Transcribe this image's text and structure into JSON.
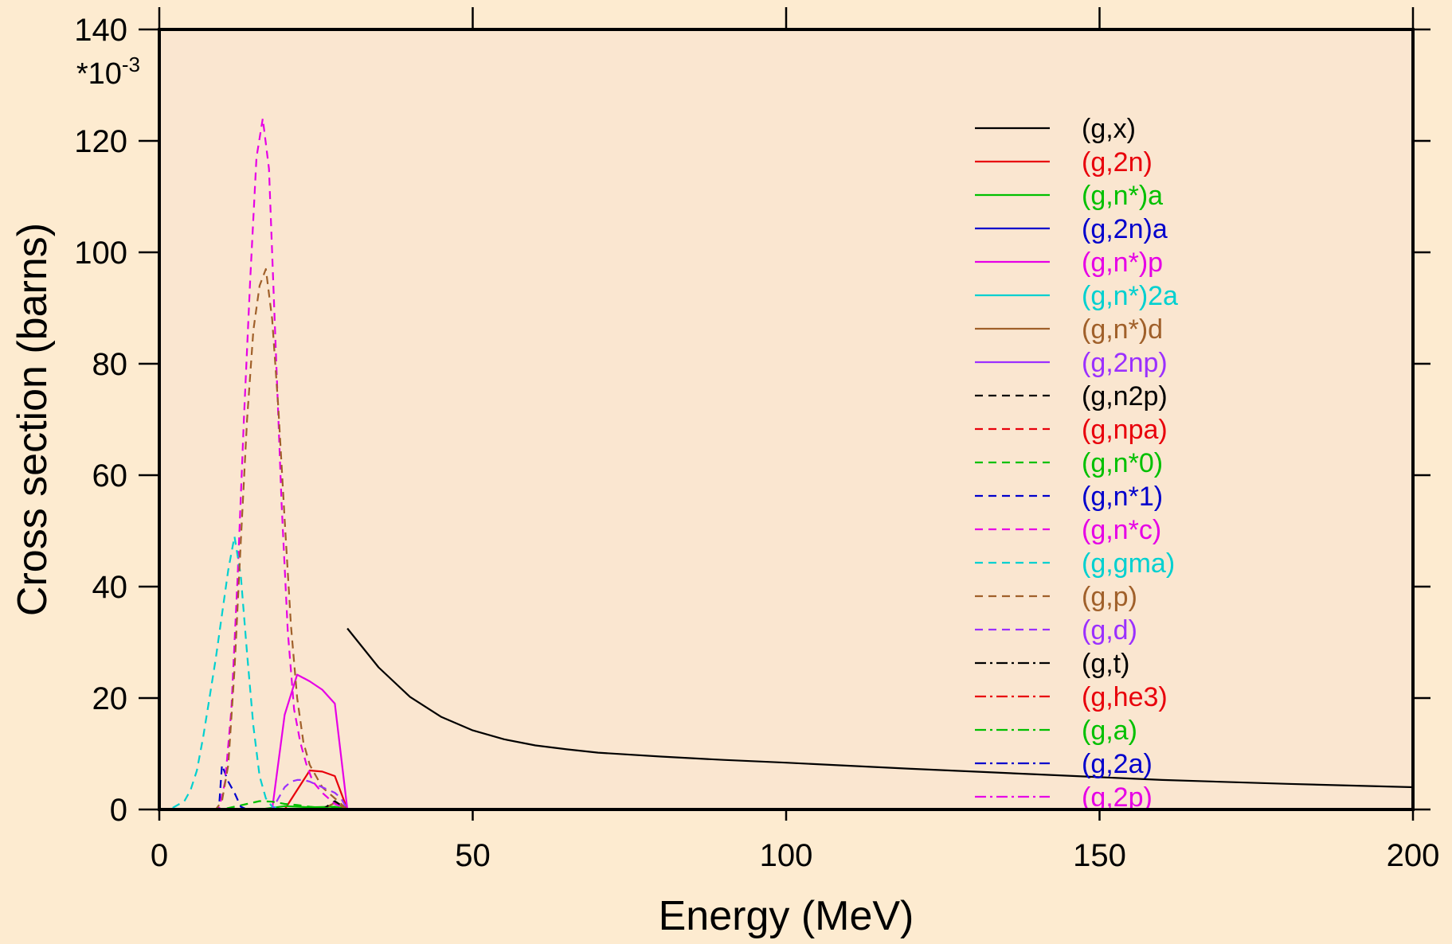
{
  "colors": {
    "page_background": "#fdebd0",
    "plot_background": "#fae6d0",
    "axis": "#000000"
  },
  "chart_data": {
    "type": "line",
    "title": "",
    "xlabel": "Energy (MeV)",
    "ylabel": "Cross section (barns)",
    "y_multiplier_label": "*10",
    "y_multiplier_exponent": "-3",
    "xlim": [
      0,
      200
    ],
    "ylim": [
      0,
      140
    ],
    "x_ticks": [
      0,
      50,
      100,
      150,
      200
    ],
    "y_ticks": [
      0,
      20,
      40,
      60,
      80,
      100,
      120,
      140
    ],
    "x_tick_labels": [
      "0",
      "50",
      "100",
      "150",
      "200"
    ],
    "y_tick_labels": [
      "0",
      "20",
      "40",
      "60",
      "80",
      "100",
      "120",
      "140"
    ],
    "grid": false,
    "legend_position": "top-right",
    "series": [
      {
        "name": "(g,x)",
        "color": "#000000",
        "dash": "solid",
        "x": [
          30,
          35,
          40,
          45,
          50,
          55,
          60,
          65,
          70,
          80,
          90,
          100,
          120,
          140,
          150,
          160,
          180,
          200
        ],
        "y": [
          32.5,
          25.5,
          20.2,
          16.6,
          14.2,
          12.6,
          11.5,
          10.8,
          10.2,
          9.5,
          8.9,
          8.4,
          7.3,
          6.3,
          5.8,
          5.3,
          4.6,
          4.0
        ]
      },
      {
        "name": "(g,2n)",
        "color": "#e8000b",
        "dash": "solid",
        "x": [
          0,
          20,
          22,
          24,
          26,
          28,
          30,
          200
        ],
        "y": [
          0,
          0,
          3.5,
          7.0,
          6.8,
          6.0,
          0,
          0
        ]
      },
      {
        "name": "(g,n*)a",
        "color": "#00c000",
        "dash": "solid",
        "x": [
          0,
          16,
          20,
          24,
          28,
          30,
          200
        ],
        "y": [
          0,
          0,
          0.6,
          0.4,
          0.5,
          0,
          0
        ]
      },
      {
        "name": "(g,2n)a",
        "color": "#0000cc",
        "dash": "solid",
        "x": [
          0,
          200
        ],
        "y": [
          0,
          0
        ]
      },
      {
        "name": "(g,n*)p",
        "color": "#e600e6",
        "dash": "solid",
        "x": [
          0,
          18,
          20,
          22,
          24,
          26,
          28,
          30,
          200
        ],
        "y": [
          0,
          0,
          17,
          24.2,
          23,
          21.5,
          19,
          0,
          0
        ]
      },
      {
        "name": "(g,n*)2a",
        "color": "#00d0d0",
        "dash": "solid",
        "x": [
          0,
          200
        ],
        "y": [
          0,
          0
        ]
      },
      {
        "name": "(g,n*)d",
        "color": "#a0602a",
        "dash": "solid",
        "x": [
          0,
          26,
          28,
          30,
          200
        ],
        "y": [
          0,
          0,
          1.2,
          0,
          0
        ]
      },
      {
        "name": "(g,2np)",
        "color": "#9b30ff",
        "dash": "solid",
        "x": [
          0,
          200
        ],
        "y": [
          0,
          0
        ]
      },
      {
        "name": "(g,n2p)",
        "color": "#000000",
        "dash": "dashed",
        "x": [
          0,
          26,
          28,
          30,
          200
        ],
        "y": [
          0,
          0,
          1.5,
          0,
          0
        ]
      },
      {
        "name": "(g,npa)",
        "color": "#e8000b",
        "dash": "dashed",
        "x": [
          0,
          200
        ],
        "y": [
          0,
          0
        ]
      },
      {
        "name": "(g,n*0)",
        "color": "#00c000",
        "dash": "dashed",
        "x": [
          0,
          10,
          12,
          14,
          16,
          18,
          20,
          22,
          24,
          26,
          28,
          30,
          200
        ],
        "y": [
          0,
          0,
          0.5,
          1.0,
          1.5,
          1.4,
          1.0,
          0.8,
          0.5,
          0.3,
          0.2,
          0,
          0
        ]
      },
      {
        "name": "(g,n*1)",
        "color": "#0000cc",
        "dash": "dashed",
        "x": [
          0,
          9.5,
          10,
          11,
          12,
          13,
          14,
          200
        ],
        "y": [
          0,
          0,
          8.0,
          5.0,
          3.0,
          0.5,
          0,
          0
        ]
      },
      {
        "name": "(g,n*c)",
        "color": "#e600e6",
        "dash": "dashed",
        "x": [
          0,
          9.5,
          10.5,
          11.5,
          12.5,
          13.5,
          14.5,
          15.5,
          16.5,
          17.5,
          18.5,
          19.5,
          20.5,
          21.5,
          22.5,
          23.5,
          24.5,
          26,
          28,
          30,
          200
        ],
        "y": [
          0,
          0,
          5,
          18,
          42,
          70,
          95,
          117,
          124,
          115,
          85,
          55,
          32,
          18,
          12,
          8,
          5,
          3,
          1,
          0,
          0
        ]
      },
      {
        "name": "(g,gma)",
        "color": "#00d0d0",
        "dash": "dashed",
        "x": [
          0,
          2,
          4,
          5,
          6,
          7,
          8,
          9,
          10,
          11,
          12,
          13,
          14,
          15,
          16,
          17,
          18,
          20,
          200
        ],
        "y": [
          0,
          0.2,
          1.5,
          3.5,
          7,
          13,
          20,
          27,
          35,
          43,
          49,
          42,
          28,
          15,
          6,
          2,
          0.5,
          0,
          0
        ]
      },
      {
        "name": "(g,p)",
        "color": "#a0602a",
        "dash": "dashed",
        "x": [
          0,
          9,
          10,
          11,
          12,
          13,
          14,
          15,
          16,
          17,
          18,
          19,
          20,
          21,
          22,
          23,
          24,
          26,
          28,
          30,
          200
        ],
        "y": [
          0,
          0,
          1.5,
          8,
          25,
          48,
          70,
          86,
          94,
          97,
          88,
          72,
          52,
          33,
          20,
          12,
          8,
          4,
          2,
          0,
          0
        ]
      },
      {
        "name": "(g,d)",
        "color": "#9b30ff",
        "dash": "dashed",
        "x": [
          0,
          18,
          19,
          20,
          21,
          22,
          23,
          24,
          25,
          26,
          27,
          28,
          29,
          30,
          200
        ],
        "y": [
          0,
          0,
          2,
          4,
          5.0,
          5.3,
          5.3,
          5.0,
          4.5,
          4.0,
          3.5,
          3.0,
          2.0,
          0,
          0
        ]
      },
      {
        "name": "(g,t)",
        "color": "#000000",
        "dash": "dashdot",
        "x": [
          0,
          200
        ],
        "y": [
          0,
          0
        ]
      },
      {
        "name": "(g,he3)",
        "color": "#e8000b",
        "dash": "dashdot",
        "x": [
          0,
          200
        ],
        "y": [
          0,
          0
        ]
      },
      {
        "name": "(g,a)",
        "color": "#00c000",
        "dash": "dashdot",
        "x": [
          0,
          26,
          28,
          30,
          200
        ],
        "y": [
          0,
          0,
          0.5,
          0,
          0
        ]
      },
      {
        "name": "(g,2a)",
        "color": "#0000cc",
        "dash": "dashdot",
        "x": [
          0,
          200
        ],
        "y": [
          0,
          0
        ]
      },
      {
        "name": "(g,2p)",
        "color": "#e600e6",
        "dash": "dashdot",
        "x": [
          0,
          200
        ],
        "y": [
          0,
          0
        ]
      }
    ]
  }
}
